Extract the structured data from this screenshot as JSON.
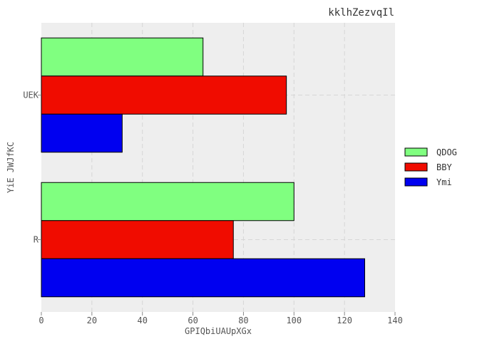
{
  "chart_data": {
    "type": "bar",
    "orientation": "horizontal",
    "title": "kklhZezvqIl",
    "xlabel": "GPIQbiUAUpXGx",
    "ylabel": "YiE JWJfKC",
    "categories": [
      "UEK",
      "R"
    ],
    "xlim": [
      0,
      140
    ],
    "xticks": [
      "0",
      "20",
      "40",
      "60",
      "80",
      "100",
      "120",
      "140"
    ],
    "grid": true,
    "legend_position": "right",
    "series": [
      {
        "name": "QDOG",
        "color": "#80ff80",
        "values": [
          64,
          100
        ]
      },
      {
        "name": "BBY",
        "color": "#f00c00",
        "values": [
          97,
          76
        ]
      },
      {
        "name": "Ymi",
        "color": "#0000f0",
        "values": [
          32,
          128
        ]
      }
    ]
  }
}
